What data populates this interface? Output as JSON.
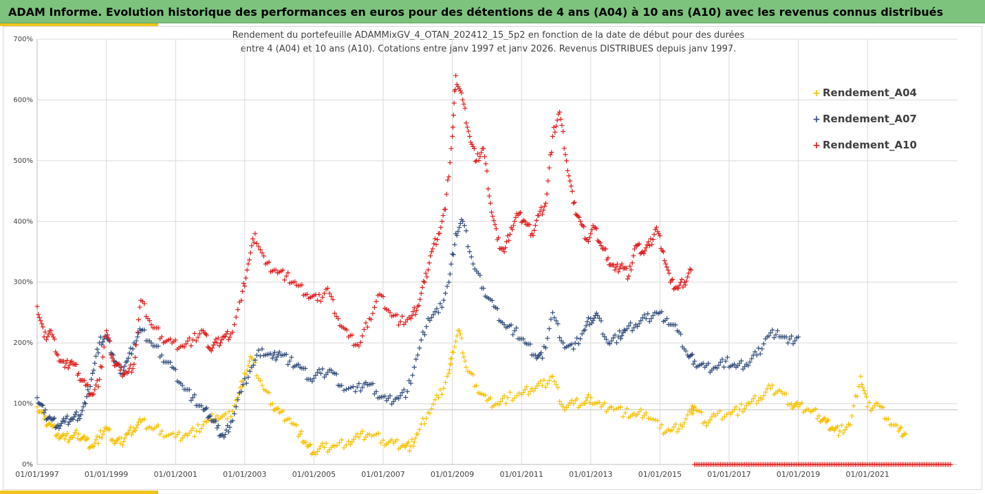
{
  "header": {
    "title": "ADAM Informe. Evolution historique des performances en euros pour des détentions de 4 ans (A04) à 10 ans (A10) avec les revenus connus distribués"
  },
  "colors": {
    "banner": "#7dc37d",
    "accent": "#f0c419",
    "A04": "#f5c000",
    "A07": "#2f4a7a",
    "A10": "#e01818",
    "grid": "#d9d9d9"
  },
  "chart_data": {
    "type": "scatter",
    "marker": "plus",
    "title_line1": "Rendement du portefeuille ADAMMixGV_4_OTAN_202412_15_5p2  en fonction de la date de début pour des durées",
    "title_line2": "entre 4 (A04) et 10 ans (A10). Cotations entre janv 1997 et janv 2026. Revenus DISTRIBUES depuis janv 1997.",
    "xlabel": "",
    "ylabel": "",
    "ylim": [
      0,
      700
    ],
    "xlim": [
      1997.0,
      2023.6
    ],
    "yticks": [
      "0%",
      "100%",
      "200%",
      "300%",
      "400%",
      "500%",
      "600%",
      "700%"
    ],
    "xticks": [
      "01/01/1997",
      "01/01/1999",
      "01/01/2001",
      "01/01/2003",
      "01/01/2005",
      "01/01/2007",
      "01/01/2009",
      "01/01/2011",
      "01/01/2013",
      "01/01/2015",
      "01/01/2017",
      "01/01/2019",
      "01/01/2021"
    ],
    "grid": true,
    "legend_position": "right",
    "series": [
      {
        "name": "Rendement_A04",
        "x": [
          1997.0,
          1997.2,
          1997.4,
          1997.6,
          1997.8,
          1998.0,
          1998.2,
          1998.4,
          1998.6,
          1998.8,
          1999.0,
          1999.2,
          1999.4,
          1999.6,
          1999.8,
          2000.0,
          2000.3,
          2000.6,
          2001.0,
          2001.3,
          2001.6,
          2001.9,
          2002.2,
          2002.5,
          2002.8,
          2003.0,
          2003.2,
          2003.5,
          2003.8,
          2004.0,
          2004.3,
          2004.6,
          2004.8,
          2005.0,
          2005.3,
          2005.6,
          2006.0,
          2006.3,
          2006.6,
          2007.0,
          2007.3,
          2007.6,
          2007.8,
          2008.0,
          2008.3,
          2008.6,
          2008.9,
          2009.0,
          2009.2,
          2009.4,
          2009.7,
          2010.0,
          2010.3,
          2010.6,
          2011.0,
          2011.3,
          2011.6,
          2011.9,
          2012.2,
          2012.5,
          2012.8,
          2013.0,
          2013.3,
          2013.6,
          2014.0,
          2014.3,
          2014.6,
          2015.0,
          2015.3,
          2015.6,
          2015.9,
          2016.0,
          2016.3,
          2016.6,
          2017.0,
          2017.3,
          2017.6,
          2017.9,
          2018.2,
          2018.5,
          2018.8,
          2019.0,
          2019.3,
          2019.6,
          2019.8,
          2020.0,
          2020.2,
          2020.5,
          2020.8,
          2021.0,
          2021.3,
          2021.6,
          2021.9,
          2022.1
        ],
        "y": [
          95,
          75,
          65,
          50,
          42,
          45,
          50,
          40,
          30,
          45,
          60,
          40,
          35,
          50,
          60,
          70,
          60,
          55,
          45,
          50,
          55,
          70,
          80,
          75,
          110,
          150,
          175,
          130,
          100,
          85,
          75,
          50,
          30,
          20,
          28,
          30,
          38,
          45,
          50,
          40,
          35,
          32,
          30,
          50,
          85,
          110,
          150,
          185,
          220,
          160,
          130,
          105,
          100,
          110,
          115,
          125,
          130,
          145,
          95,
          100,
          100,
          110,
          95,
          95,
          85,
          80,
          85,
          60,
          55,
          65,
          85,
          95,
          70,
          80,
          85,
          90,
          100,
          110,
          125,
          120,
          100,
          95,
          90,
          80,
          70,
          60,
          55,
          65,
          145,
          95,
          100,
          75,
          55,
          50
        ]
      },
      {
        "name": "Rendement_A07",
        "x": [
          1997.0,
          1997.2,
          1997.4,
          1997.6,
          1997.8,
          1998.0,
          1998.2,
          1998.4,
          1998.6,
          1998.8,
          1999.0,
          1999.2,
          1999.4,
          1999.6,
          1999.8,
          2000.0,
          2000.3,
          2000.6,
          2000.9,
          2001.2,
          2001.5,
          2001.8,
          2002.0,
          2002.2,
          2002.4,
          2002.6,
          2002.9,
          2003.2,
          2003.5,
          2003.8,
          2004.0,
          2004.3,
          2004.6,
          2004.9,
          2005.2,
          2005.5,
          2005.8,
          2006.2,
          2006.5,
          2006.8,
          2007.1,
          2007.4,
          2007.7,
          2008.0,
          2008.3,
          2008.6,
          2008.9,
          2009.1,
          2009.3,
          2009.6,
          2009.9,
          2010.2,
          2010.5,
          2010.8,
          2011.1,
          2011.4,
          2011.6,
          2011.9,
          2012.2,
          2012.5,
          2012.8,
          2013.0,
          2013.2,
          2013.5,
          2013.8,
          2014.0,
          2014.3,
          2014.6,
          2014.9,
          2015.2,
          2015.5,
          2015.8,
          2016.0,
          2016.3,
          2016.6,
          2016.9,
          2017.2,
          2017.5,
          2017.8,
          2018.1,
          2018.4,
          2018.7,
          2019.0
        ],
        "y": [
          110,
          85,
          75,
          65,
          70,
          75,
          80,
          100,
          150,
          200,
          210,
          180,
          150,
          170,
          200,
          220,
          200,
          180,
          160,
          130,
          110,
          90,
          80,
          60,
          45,
          70,
          120,
          160,
          190,
          175,
          185,
          170,
          160,
          140,
          150,
          155,
          130,
          120,
          135,
          120,
          105,
          110,
          120,
          180,
          240,
          250,
          300,
          380,
          400,
          330,
          290,
          260,
          230,
          220,
          200,
          180,
          175,
          250,
          200,
          190,
          220,
          240,
          245,
          200,
          210,
          220,
          230,
          240,
          250,
          240,
          220,
          180,
          170,
          160,
          160,
          170,
          160,
          165,
          180,
          210,
          220,
          200,
          210
        ]
      },
      {
        "name": "Rendement_A10",
        "x": [
          1997.0,
          1997.2,
          1997.4,
          1997.6,
          1997.8,
          1998.0,
          1998.2,
          1998.4,
          1998.6,
          1998.8,
          1999.0,
          1999.2,
          1999.4,
          1999.6,
          1999.8,
          2000.0,
          2000.3,
          2000.6,
          2000.9,
          2001.2,
          2001.5,
          2001.8,
          2002.0,
          2002.2,
          2002.4,
          2002.6,
          2002.9,
          2003.1,
          2003.3,
          2003.6,
          2003.9,
          2004.2,
          2004.5,
          2004.8,
          2005.1,
          2005.4,
          2005.7,
          2006.0,
          2006.3,
          2006.6,
          2006.9,
          2007.2,
          2007.5,
          2007.8,
          2008.0,
          2008.2,
          2008.4,
          2008.6,
          2008.8,
          2009.0,
          2009.1,
          2009.3,
          2009.5,
          2009.7,
          2009.9,
          2010.1,
          2010.3,
          2010.5,
          2010.7,
          2010.9,
          2011.1,
          2011.3,
          2011.5,
          2011.7,
          2011.9,
          2012.1,
          2012.3,
          2012.5,
          2012.7,
          2012.9,
          2013.1,
          2013.3,
          2013.5,
          2013.7,
          2013.9,
          2014.1,
          2014.3,
          2014.5,
          2014.7,
          2014.9,
          2015.1,
          2015.3,
          2015.5,
          2015.7,
          2015.9
        ],
        "y": [
          260,
          210,
          220,
          180,
          160,
          170,
          150,
          130,
          115,
          140,
          220,
          170,
          155,
          150,
          165,
          270,
          230,
          210,
          200,
          195,
          205,
          220,
          190,
          200,
          210,
          215,
          270,
          330,
          380,
          330,
          320,
          310,
          295,
          280,
          270,
          290,
          240,
          210,
          195,
          240,
          280,
          250,
          235,
          240,
          260,
          300,
          350,
          380,
          420,
          540,
          640,
          600,
          540,
          500,
          520,
          430,
          370,
          350,
          390,
          410,
          400,
          380,
          410,
          430,
          540,
          580,
          500,
          430,
          400,
          370,
          390,
          360,
          340,
          320,
          330,
          310,
          360,
          350,
          360,
          390,
          350,
          300,
          290,
          300,
          320
        ]
      }
    ],
    "baseline_marks": {
      "series": "Rendement_A10",
      "y": 0,
      "x_from": 2016.0,
      "x_to": 2023.4
    }
  }
}
